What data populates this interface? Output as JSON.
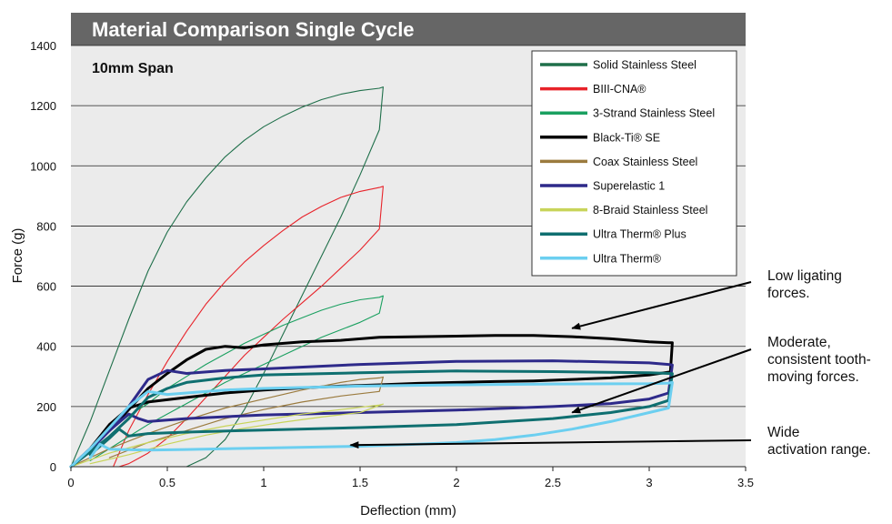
{
  "chart_data": {
    "type": "line",
    "title": "Material Comparison Single Cycle",
    "subtitle": "10mm Span",
    "xlabel": "Deflection (mm)",
    "ylabel": "Force (g)",
    "xlim": [
      0,
      3.5
    ],
    "ylim": [
      0,
      1400
    ],
    "xticks": [
      "0",
      "0.5",
      "1",
      "1.5",
      "2",
      "2.5",
      "3",
      "3.5"
    ],
    "yticks": [
      "0",
      "200",
      "400",
      "600",
      "800",
      "1000",
      "1200",
      "1400"
    ],
    "grid": "horizontal",
    "legend_position": "top-right",
    "series": [
      {
        "name": "Solid Stainless Steel",
        "color": "#1f6f4a",
        "width": 1.1,
        "x": [
          0,
          0.1,
          0.2,
          0.3,
          0.4,
          0.5,
          0.6,
          0.7,
          0.8,
          0.9,
          1.0,
          1.1,
          1.2,
          1.3,
          1.4,
          1.5,
          1.6,
          1.62,
          1.6,
          1.5,
          1.4,
          1.3,
          1.2,
          1.1,
          1.0,
          0.9,
          0.8,
          0.7,
          0.6
        ],
        "y": [
          0,
          150,
          320,
          490,
          650,
          780,
          880,
          960,
          1030,
          1085,
          1130,
          1165,
          1195,
          1220,
          1238,
          1250,
          1258,
          1262,
          1120,
          970,
          830,
          700,
          570,
          440,
          310,
          190,
          90,
          30,
          0
        ]
      },
      {
        "name": "BIII-CNA®",
        "color": "#e8232a",
        "width": 1.1,
        "x": [
          0.22,
          0.3,
          0.4,
          0.5,
          0.6,
          0.7,
          0.8,
          0.9,
          1.0,
          1.1,
          1.2,
          1.3,
          1.4,
          1.5,
          1.6,
          1.62,
          1.6,
          1.5,
          1.4,
          1.3,
          1.2,
          1.1,
          1.0,
          0.9,
          0.8,
          0.7,
          0.6,
          0.5,
          0.4,
          0.3,
          0.25
        ],
        "y": [
          0,
          120,
          240,
          350,
          450,
          540,
          615,
          680,
          735,
          785,
          830,
          865,
          895,
          915,
          928,
          932,
          790,
          720,
          660,
          600,
          545,
          490,
          430,
          370,
          300,
          230,
          160,
          95,
          45,
          10,
          0
        ]
      },
      {
        "name": "3-Strand Stainless Steel",
        "color": "#1aa060",
        "width": 1.1,
        "x": [
          0,
          0.1,
          0.2,
          0.3,
          0.4,
          0.5,
          0.6,
          0.7,
          0.8,
          0.9,
          1.0,
          1.1,
          1.2,
          1.3,
          1.4,
          1.5,
          1.6,
          1.62,
          1.6,
          1.5,
          1.4,
          1.3,
          1.2,
          1.1,
          1.0,
          0.9,
          0.8,
          0.7,
          0.6,
          0.5,
          0.4,
          0.3,
          0.2,
          0.1
        ],
        "y": [
          0,
          60,
          120,
          170,
          210,
          260,
          300,
          340,
          375,
          410,
          440,
          470,
          495,
          520,
          540,
          555,
          563,
          568,
          510,
          480,
          455,
          430,
          400,
          370,
          340,
          310,
          280,
          245,
          210,
          175,
          140,
          100,
          60,
          20
        ]
      },
      {
        "name": "Black-Ti® SE",
        "color": "#000000",
        "width": 3,
        "x": [
          0,
          0.1,
          0.2,
          0.3,
          0.4,
          0.5,
          0.6,
          0.7,
          0.8,
          0.9,
          1.0,
          1.2,
          1.4,
          1.6,
          1.8,
          2.0,
          2.2,
          2.4,
          2.6,
          2.8,
          3.0,
          3.1,
          3.12,
          3.11,
          3.0,
          2.8,
          2.6,
          2.4,
          2.2,
          2.0,
          1.8,
          1.6,
          1.4,
          1.2,
          1.0,
          0.8,
          0.6,
          0.4,
          0.3,
          0.2,
          0.1
        ],
        "y": [
          0,
          60,
          120,
          190,
          260,
          310,
          355,
          390,
          400,
          395,
          405,
          415,
          420,
          430,
          432,
          434,
          436,
          436,
          432,
          425,
          415,
          412,
          412,
          315,
          305,
          295,
          290,
          285,
          283,
          280,
          277,
          272,
          268,
          262,
          255,
          245,
          230,
          215,
          195,
          140,
          60
        ]
      },
      {
        "name": "Coax Stainless Steel",
        "color": "#9b7b3e",
        "width": 1.2,
        "x": [
          0,
          0.2,
          0.4,
          0.6,
          0.8,
          1.0,
          1.2,
          1.4,
          1.5,
          1.6,
          1.62,
          1.6,
          1.4,
          1.2,
          1.0,
          0.8,
          0.6,
          0.4,
          0.2
        ],
        "y": [
          0,
          60,
          110,
          155,
          195,
          225,
          255,
          280,
          290,
          295,
          298,
          250,
          235,
          215,
          190,
          160,
          120,
          80,
          30
        ]
      },
      {
        "name": "Superelastic 1",
        "color": "#2e2a8a",
        "width": 3,
        "x": [
          0,
          0.1,
          0.2,
          0.3,
          0.4,
          0.5,
          0.6,
          0.8,
          1.0,
          1.5,
          2.0,
          2.5,
          3.0,
          3.1,
          3.12,
          3.1,
          3.0,
          2.8,
          2.5,
          2.0,
          1.5,
          1.0,
          0.6,
          0.4,
          0.35,
          0.3,
          0.2,
          0.1
        ],
        "y": [
          0,
          60,
          120,
          200,
          290,
          320,
          310,
          320,
          325,
          340,
          350,
          352,
          345,
          340,
          338,
          245,
          225,
          210,
          200,
          188,
          180,
          172,
          160,
          150,
          160,
          175,
          120,
          55
        ]
      },
      {
        "name": "8-Braid Stainless Steel",
        "color": "#c8d45a",
        "width": 1.2,
        "x": [
          0,
          0.2,
          0.4,
          0.6,
          0.8,
          1.0,
          1.2,
          1.4,
          1.6,
          1.62,
          1.5,
          1.3,
          1.1,
          0.9,
          0.7,
          0.5,
          0.3,
          0.1
        ],
        "y": [
          0,
          45,
          80,
          110,
          135,
          155,
          175,
          190,
          205,
          208,
          180,
          165,
          148,
          128,
          105,
          75,
          40,
          10
        ]
      },
      {
        "name": "Ultra Therm® Plus",
        "color": "#0f6f70",
        "width": 3,
        "x": [
          0,
          0.1,
          0.2,
          0.3,
          0.4,
          0.5,
          0.6,
          0.8,
          1.0,
          1.5,
          2.0,
          2.5,
          3.0,
          3.1,
          3.12,
          3.1,
          3.0,
          2.8,
          2.5,
          2.0,
          1.5,
          1.0,
          0.6,
          0.4,
          0.3,
          0.25,
          0.2,
          0.1
        ],
        "y": [
          0,
          50,
          100,
          160,
          230,
          260,
          280,
          295,
          305,
          312,
          318,
          316,
          312,
          310,
          309,
          220,
          200,
          180,
          160,
          140,
          130,
          122,
          115,
          110,
          102,
          125,
          95,
          40
        ]
      },
      {
        "name": "Ultra Therm®",
        "color": "#6ccff0",
        "width": 3,
        "x": [
          0,
          0.1,
          0.2,
          0.3,
          0.4,
          0.5,
          0.6,
          0.8,
          1.0,
          1.5,
          2.0,
          2.5,
          3.0,
          3.1,
          3.12,
          3.1,
          3.0,
          2.8,
          2.6,
          2.4,
          2.2,
          2.0,
          1.8,
          1.5,
          1.0,
          0.6,
          0.4,
          0.2,
          0.15,
          0.1
        ],
        "y": [
          0,
          60,
          130,
          200,
          250,
          240,
          245,
          255,
          260,
          268,
          272,
          275,
          276,
          278,
          280,
          195,
          180,
          150,
          125,
          105,
          90,
          80,
          75,
          68,
          62,
          57,
          55,
          58,
          75,
          30
        ]
      }
    ],
    "annotations": [
      {
        "id": "low",
        "lines": [
          "Low ligating",
          "forces."
        ],
        "point": [
          2.6,
          460
        ]
      },
      {
        "id": "moderate",
        "lines": [
          "Moderate,",
          "consistent tooth-",
          "moving forces."
        ],
        "point": [
          2.6,
          180
        ]
      },
      {
        "id": "wide",
        "lines": [
          "Wide",
          "activation range."
        ],
        "point": [
          1.45,
          72
        ]
      }
    ]
  },
  "colors": {
    "title_band": "#666666",
    "plot_background": "#ebebeb",
    "title_text": "#ffffff"
  }
}
